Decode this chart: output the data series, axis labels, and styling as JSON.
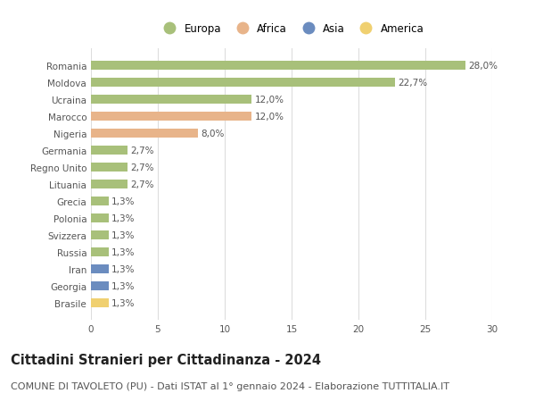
{
  "categories": [
    "Romania",
    "Moldova",
    "Ucraina",
    "Marocco",
    "Nigeria",
    "Germania",
    "Regno Unito",
    "Lituania",
    "Grecia",
    "Polonia",
    "Svizzera",
    "Russia",
    "Iran",
    "Georgia",
    "Brasile"
  ],
  "values": [
    28.0,
    22.7,
    12.0,
    12.0,
    8.0,
    2.7,
    2.7,
    2.7,
    1.3,
    1.3,
    1.3,
    1.3,
    1.3,
    1.3,
    1.3
  ],
  "labels": [
    "28,0%",
    "22,7%",
    "12,0%",
    "12,0%",
    "8,0%",
    "2,7%",
    "2,7%",
    "2,7%",
    "1,3%",
    "1,3%",
    "1,3%",
    "1,3%",
    "1,3%",
    "1,3%",
    "1,3%"
  ],
  "continents": [
    "Europa",
    "Europa",
    "Europa",
    "Africa",
    "Africa",
    "Europa",
    "Europa",
    "Europa",
    "Europa",
    "Europa",
    "Europa",
    "Europa",
    "Asia",
    "Asia",
    "America"
  ],
  "colors": {
    "Europa": "#a8c07a",
    "Africa": "#e8b48a",
    "Asia": "#6b8cbf",
    "America": "#f0d070"
  },
  "xlim": [
    0,
    30
  ],
  "xticks": [
    0,
    5,
    10,
    15,
    20,
    25,
    30
  ],
  "title": "Cittadini Stranieri per Cittadinanza - 2024",
  "subtitle": "COMUNE DI TAVOLETO (PU) - Dati ISTAT al 1° gennaio 2024 - Elaborazione TUTTITALIA.IT",
  "background_color": "#ffffff",
  "grid_color": "#dddddd",
  "bar_alpha": 1.0,
  "title_fontsize": 10.5,
  "subtitle_fontsize": 8,
  "label_fontsize": 7.5,
  "tick_fontsize": 7.5,
  "legend_fontsize": 8.5
}
